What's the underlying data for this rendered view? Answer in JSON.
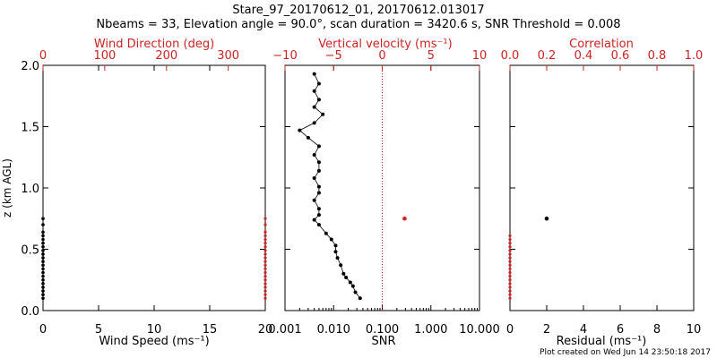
{
  "header": {
    "title": "Stare_97_20170612_01, 20170612.013017",
    "subtitle": "Nbeams = 33, Elevation angle = 90.0°, scan duration = 3420.6 s, SNR Threshold = 0.008",
    "footer": "Plot created on Wed Jun 14 23:50:18 2017"
  },
  "colors": {
    "black": "#000000",
    "red": "#cc2222"
  },
  "chart_data": [
    {
      "type": "scatter",
      "id": "panel1",
      "ylabel": "z (km AGL)",
      "ylim": [
        0.0,
        2.0
      ],
      "yticks": [
        "0.0",
        "0.5",
        "1.0",
        "1.5",
        "2.0"
      ],
      "bottom_axis": {
        "label": "Wind Speed (ms⁻¹)",
        "range": [
          0,
          20
        ],
        "ticks": [
          "0",
          "5",
          "10",
          "15",
          "20"
        ]
      },
      "top_axis": {
        "label": "Wind Direction (deg)",
        "range": [
          0,
          360
        ],
        "ticks": [
          "0",
          "100",
          "200",
          "300"
        ]
      },
      "series": [
        {
          "name": "Wind Speed",
          "color": "#000000",
          "x": [
            0,
            0,
            0,
            0,
            0,
            0,
            0,
            0,
            0,
            0,
            0,
            0,
            0,
            0,
            0,
            0,
            0,
            0,
            0,
            0,
            0
          ],
          "y": [
            0.1,
            0.13,
            0.16,
            0.19,
            0.22,
            0.25,
            0.28,
            0.31,
            0.34,
            0.37,
            0.4,
            0.43,
            0.46,
            0.49,
            0.52,
            0.55,
            0.58,
            0.61,
            0.64,
            0.7,
            0.75
          ]
        },
        {
          "name": "Wind Direction",
          "color": "#cc2222",
          "x": [
            360,
            360,
            360,
            360,
            360,
            360,
            360,
            360,
            360,
            360,
            360,
            360,
            360,
            360,
            360,
            360,
            360,
            360,
            360,
            360,
            360
          ],
          "y": [
            0.1,
            0.13,
            0.16,
            0.19,
            0.22,
            0.25,
            0.28,
            0.31,
            0.34,
            0.37,
            0.4,
            0.43,
            0.46,
            0.49,
            0.52,
            0.55,
            0.58,
            0.61,
            0.64,
            0.7,
            0.75
          ]
        }
      ]
    },
    {
      "type": "line",
      "id": "panel2",
      "ylim": [
        0.0,
        2.0
      ],
      "bottom_axis": {
        "label": "SNR",
        "scale": "log",
        "range": [
          0.001,
          10
        ],
        "ticks": [
          "0.001",
          "0.010",
          "0.100",
          "1.000",
          "10.000"
        ]
      },
      "top_axis": {
        "label": "Vertical velocity (ms⁻¹)",
        "range": [
          -10,
          10
        ],
        "ticks": [
          "−10",
          "−5",
          "0",
          "5",
          "10"
        ]
      },
      "series": [
        {
          "name": "SNR",
          "color": "#000000",
          "x": [
            0.035,
            0.028,
            0.025,
            0.022,
            0.018,
            0.016,
            0.014,
            0.012,
            0.011,
            0.011,
            0.009,
            0.007,
            0.005,
            0.004,
            0.005,
            0.005,
            0.004,
            0.005,
            0.005,
            0.004,
            0.005,
            0.005,
            0.004,
            0.005,
            0.003,
            0.002,
            0.004,
            0.006,
            0.004,
            0.005,
            0.004,
            0.005,
            0.004
          ],
          "y": [
            0.1,
            0.15,
            0.2,
            0.23,
            0.27,
            0.3,
            0.37,
            0.43,
            0.48,
            0.53,
            0.58,
            0.63,
            0.7,
            0.74,
            0.78,
            0.83,
            0.9,
            0.96,
            1.01,
            1.08,
            1.14,
            1.21,
            1.27,
            1.34,
            1.41,
            1.47,
            1.53,
            1.6,
            1.66,
            1.72,
            1.79,
            1.85,
            1.93
          ]
        },
        {
          "name": "Vertical velocity",
          "color": "#cc2222",
          "x": [
            2.3
          ],
          "y": [
            0.75
          ]
        }
      ],
      "reference_line": {
        "axis": "top",
        "value": 0,
        "style": "dotted",
        "color": "#cc2222"
      }
    },
    {
      "type": "scatter",
      "id": "panel3",
      "ylim": [
        0.0,
        2.0
      ],
      "bottom_axis": {
        "label": "Residual (ms⁻¹)",
        "range": [
          0,
          10
        ],
        "ticks": [
          "0",
          "2",
          "4",
          "6",
          "8",
          "10"
        ]
      },
      "top_axis": {
        "label": "Correlation",
        "range": [
          0.0,
          1.0
        ],
        "ticks": [
          "0.0",
          "0.2",
          "0.4",
          "0.6",
          "0.8",
          "1.0"
        ]
      },
      "series": [
        {
          "name": "Residual",
          "color": "#000000",
          "x": [
            2.0
          ],
          "y": [
            0.75
          ]
        },
        {
          "name": "Correlation",
          "color": "#cc2222",
          "x": [
            0,
            0,
            0,
            0,
            0,
            0,
            0,
            0,
            0,
            0,
            0,
            0,
            0,
            0,
            0,
            0,
            0,
            0
          ],
          "y": [
            0.1,
            0.13,
            0.16,
            0.19,
            0.22,
            0.25,
            0.28,
            0.31,
            0.34,
            0.37,
            0.4,
            0.43,
            0.46,
            0.49,
            0.52,
            0.55,
            0.58,
            0.61
          ]
        }
      ]
    }
  ]
}
